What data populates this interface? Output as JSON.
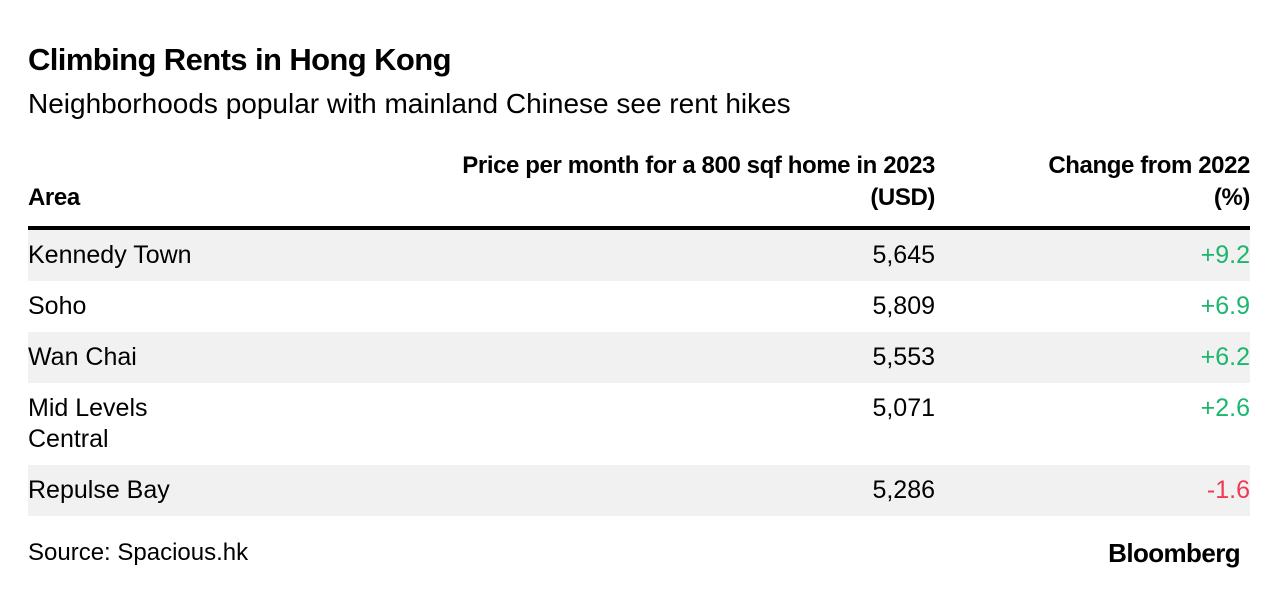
{
  "title": "Climbing Rents in Hong Kong",
  "subtitle": "Neighborhoods popular with mainland Chinese see rent hikes",
  "colors": {
    "positive": "#1cb66c",
    "negative": "#ef3a52",
    "row_shade": "#f1f1f1"
  },
  "chart_data": {
    "type": "table",
    "title": "Climbing Rents in Hong Kong",
    "subtitle": "Neighborhoods popular with mainland Chinese see rent hikes",
    "columns": [
      "Area",
      "Price per month for a 800 sqf home in 2023 (USD)",
      "Change from 2022 (%)"
    ],
    "rows": [
      {
        "area": "Kennedy Town",
        "price": "5,645",
        "change": "+9.2",
        "direction": "up"
      },
      {
        "area": "Soho",
        "price": "5,809",
        "change": "+6.9",
        "direction": "up"
      },
      {
        "area": "Wan Chai",
        "price": "5,553",
        "change": "+6.2",
        "direction": "up"
      },
      {
        "area": "Mid Levels Central",
        "price": "5,071",
        "change": "+2.6",
        "direction": "up"
      },
      {
        "area": "Repulse Bay",
        "price": "5,286",
        "change": "-1.6",
        "direction": "down"
      }
    ]
  },
  "footer": {
    "source": "Source: Spacious.hk",
    "brand": "Bloomberg"
  }
}
